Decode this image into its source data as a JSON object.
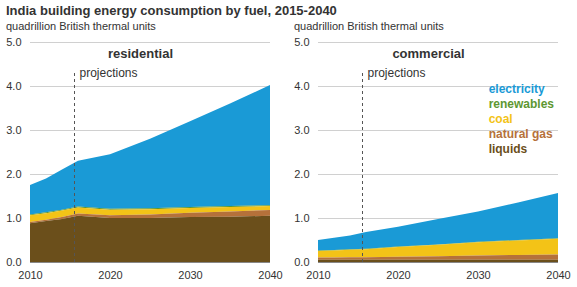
{
  "title": "India building energy consumption by fuel, 2015-2040",
  "chart_data": [
    {
      "type": "area",
      "stacked": true,
      "title": "residential",
      "subtitle": "quadrillion British thermal units",
      "annotation": {
        "text": "projections",
        "x": 2015.5
      },
      "x": [
        2010,
        2012,
        2014,
        2016,
        2020,
        2025,
        2030,
        2035,
        2040
      ],
      "series": [
        {
          "name": "electricity",
          "color": "#1a9ad6",
          "values": [
            0.67,
            0.77,
            0.91,
            1.04,
            1.24,
            1.58,
            1.95,
            2.33,
            2.73
          ]
        },
        {
          "name": "renewables",
          "color": "#5d9732",
          "values": [
            0.02,
            0.02,
            0.02,
            0.02,
            0.02,
            0.02,
            0.02,
            0.02,
            0.02
          ]
        },
        {
          "name": "coal",
          "color": "#f3c317",
          "values": [
            0.15,
            0.15,
            0.15,
            0.14,
            0.13,
            0.12,
            0.11,
            0.1,
            0.09
          ]
        },
        {
          "name": "natural gas",
          "color": "#b5713a",
          "values": [
            0.03,
            0.03,
            0.04,
            0.05,
            0.06,
            0.08,
            0.1,
            0.12,
            0.13
          ]
        },
        {
          "name": "liquids",
          "color": "#6b4f1b",
          "values": [
            0.88,
            0.93,
            0.98,
            1.05,
            1.0,
            1.0,
            1.02,
            1.03,
            1.05
          ]
        }
      ],
      "xlim": [
        2010,
        2040
      ],
      "xticks": [
        2010,
        2020,
        2030,
        2040
      ],
      "ylim": [
        0,
        5
      ],
      "yticks": [
        0,
        1,
        2,
        3,
        4,
        5
      ],
      "grid": true
    },
    {
      "type": "area",
      "stacked": true,
      "title": "commercial",
      "subtitle": "quadrillion British thermal units",
      "annotation": {
        "text": "projections",
        "x": 2015.5
      },
      "legend": "right",
      "x": [
        2010,
        2012,
        2014,
        2016,
        2020,
        2025,
        2030,
        2035,
        2040
      ],
      "series": [
        {
          "name": "electricity",
          "color": "#1a9ad6",
          "values": [
            0.24,
            0.28,
            0.31,
            0.38,
            0.45,
            0.58,
            0.69,
            0.85,
            1.03
          ]
        },
        {
          "name": "renewables",
          "color": "#5d9732",
          "values": [
            0.01,
            0.01,
            0.01,
            0.01,
            0.01,
            0.01,
            0.01,
            0.01,
            0.01
          ]
        },
        {
          "name": "coal",
          "color": "#f3c317",
          "values": [
            0.15,
            0.16,
            0.17,
            0.18,
            0.22,
            0.26,
            0.3,
            0.33,
            0.36
          ]
        },
        {
          "name": "natural gas",
          "color": "#b5713a",
          "values": [
            0.05,
            0.05,
            0.06,
            0.06,
            0.07,
            0.08,
            0.1,
            0.11,
            0.12
          ]
        },
        {
          "name": "liquids",
          "color": "#6b4f1b",
          "values": [
            0.05,
            0.05,
            0.05,
            0.05,
            0.05,
            0.05,
            0.05,
            0.05,
            0.05
          ]
        }
      ],
      "xlim": [
        2010,
        2040
      ],
      "xticks": [
        2010,
        2020,
        2030,
        2040
      ],
      "ylim": [
        0,
        5
      ],
      "yticks": [
        0,
        1,
        2,
        3,
        4,
        5
      ],
      "grid": true
    }
  ]
}
